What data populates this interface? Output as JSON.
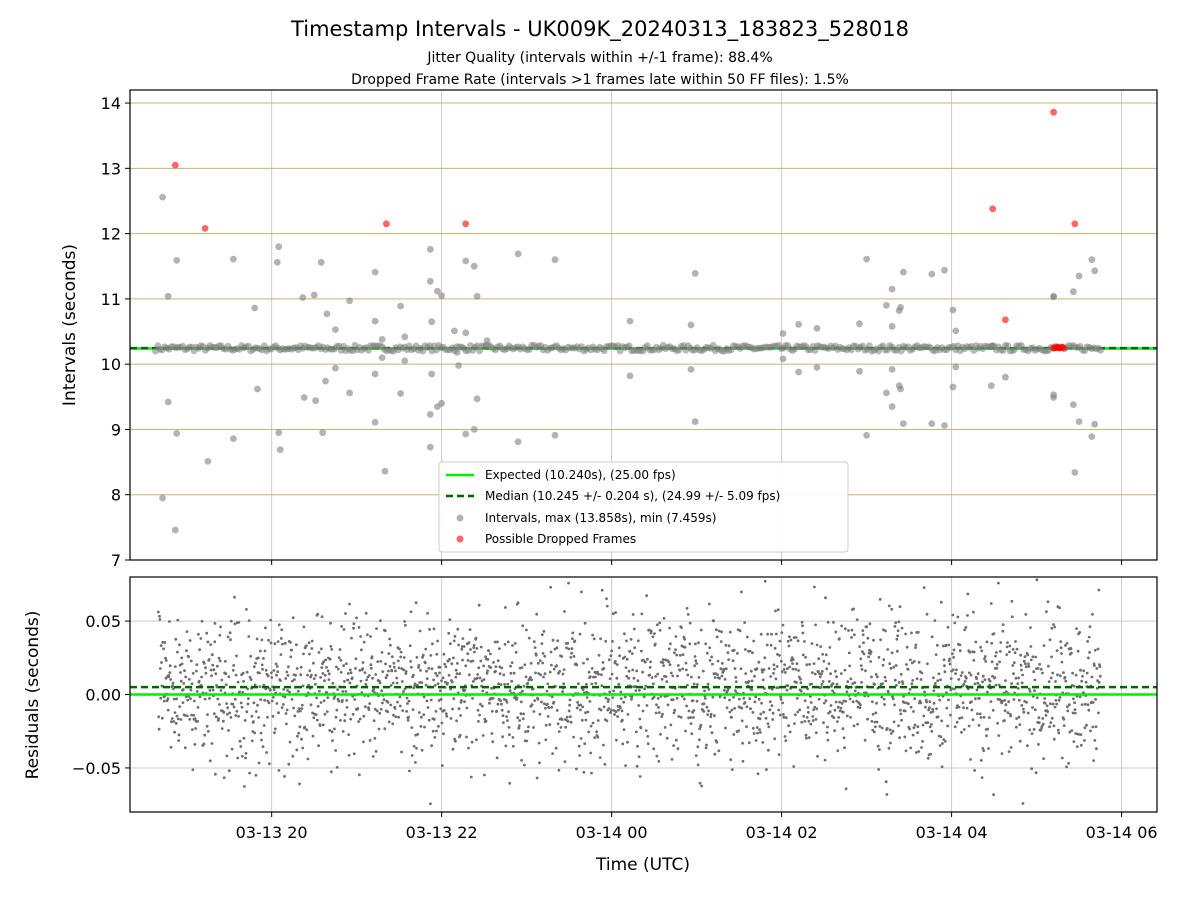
{
  "title": "Timestamp Intervals - UK009K_20240313_183823_528018",
  "subtitle_lines": [
    "Jitter Quality (intervals within +/-1 frame): 88.4%",
    "Dropped Frame Rate (intervals >1 frames late within 50 FF files): 1.5%"
  ],
  "colors": {
    "expected": "#00ee00",
    "median": "#006400",
    "intervals": "#808080",
    "dropped": "#ff0000",
    "hgrid": "#c8b46a",
    "grid": "#cccccc",
    "residuals": "#6e6e6e"
  },
  "chart_data": [
    {
      "type": "scatter",
      "panel": "intervals",
      "ylabel": "Intervals (seconds)",
      "xlim": [
        "2024-03-13 18:20",
        "2024-03-14 06:25"
      ],
      "ylim": [
        7,
        14.2
      ],
      "x_ticks": [
        "03-13 20",
        "03-13 22",
        "03-14 00",
        "03-14 02",
        "03-14 04",
        "03-14 06"
      ],
      "y_ticks": [
        "7",
        "8",
        "9",
        "10",
        "11",
        "12",
        "13",
        "14"
      ],
      "grid": true,
      "legend_position": "lower center",
      "expected_line": {
        "name": "Expected (10.240s), (25.00 fps)",
        "y": 10.24
      },
      "median_line": {
        "name": "Median (10.245 +/- 0.204 s), (24.99 +/- 5.09 fps)",
        "y": 10.245
      },
      "series": [
        {
          "name": "Intervals, max (13.858s), min (7.459s)",
          "baseline": {
            "from": "2024-03-13 18:38",
            "to": "2024-03-14 05:46",
            "y": 10.245
          },
          "points": [
            [
              "2024-03-13 18:43",
              12.56
            ],
            [
              "2024-03-13 18:43",
              7.95
            ],
            [
              "2024-03-13 18:47",
              11.04
            ],
            [
              "2024-03-13 18:47",
              9.42
            ],
            [
              "2024-03-13 18:52",
              7.46
            ],
            [
              "2024-03-13 18:53",
              11.59
            ],
            [
              "2024-03-13 18:53",
              8.94
            ],
            [
              "2024-03-13 19:15",
              8.51
            ],
            [
              "2024-03-13 19:33",
              11.61
            ],
            [
              "2024-03-13 19:33",
              8.86
            ],
            [
              "2024-03-13 19:48",
              10.86
            ],
            [
              "2024-03-13 19:50",
              9.62
            ],
            [
              "2024-03-13 20:05",
              11.8
            ],
            [
              "2024-03-13 20:04",
              11.56
            ],
            [
              "2024-03-13 20:05",
              8.95
            ],
            [
              "2024-03-13 20:06",
              8.69
            ],
            [
              "2024-03-13 20:22",
              11.02
            ],
            [
              "2024-03-13 20:23",
              9.49
            ],
            [
              "2024-03-13 20:30",
              11.06
            ],
            [
              "2024-03-13 20:31",
              9.44
            ],
            [
              "2024-03-13 20:35",
              11.56
            ],
            [
              "2024-03-13 20:36",
              8.95
            ],
            [
              "2024-03-13 20:39",
              10.77
            ],
            [
              "2024-03-13 20:38",
              9.74
            ],
            [
              "2024-03-13 20:45",
              10.53
            ],
            [
              "2024-03-13 20:45",
              9.94
            ],
            [
              "2024-03-13 20:55",
              10.97
            ],
            [
              "2024-03-13 20:55",
              9.56
            ],
            [
              "2024-03-13 21:13",
              11.41
            ],
            [
              "2024-03-13 21:13",
              10.66
            ],
            [
              "2024-03-13 21:13",
              9.85
            ],
            [
              "2024-03-13 21:13",
              9.11
            ],
            [
              "2024-03-13 21:18",
              10.38
            ],
            [
              "2024-03-13 21:18",
              10.1
            ],
            [
              "2024-03-13 21:20",
              8.36
            ],
            [
              "2024-03-13 21:31",
              10.89
            ],
            [
              "2024-03-13 21:31",
              9.55
            ],
            [
              "2024-03-13 21:34",
              10.42
            ],
            [
              "2024-03-13 21:34",
              10.05
            ],
            [
              "2024-03-13 21:52",
              11.76
            ],
            [
              "2024-03-13 21:52",
              11.27
            ],
            [
              "2024-03-13 21:53",
              10.65
            ],
            [
              "2024-03-13 21:53",
              9.85
            ],
            [
              "2024-03-13 21:52",
              9.23
            ],
            [
              "2024-03-13 21:52",
              8.73
            ],
            [
              "2024-03-13 21:57",
              11.12
            ],
            [
              "2024-03-13 21:57",
              9.35
            ],
            [
              "2024-03-13 22:00",
              11.05
            ],
            [
              "2024-03-13 22:00",
              9.4
            ],
            [
              "2024-03-13 22:09",
              10.51
            ],
            [
              "2024-03-13 22:11",
              10.18
            ],
            [
              "2024-03-13 22:12",
              9.98
            ],
            [
              "2024-03-13 22:17",
              11.58
            ],
            [
              "2024-03-13 22:17",
              10.48
            ],
            [
              "2024-03-13 22:17",
              8.93
            ],
            [
              "2024-03-13 22:23",
              11.5
            ],
            [
              "2024-03-13 22:23",
              9.0
            ],
            [
              "2024-03-13 22:25",
              11.04
            ],
            [
              "2024-03-13 22:25",
              9.47
            ],
            [
              "2024-03-13 22:32",
              10.36
            ],
            [
              "2024-03-13 22:54",
              11.69
            ],
            [
              "2024-03-13 22:54",
              8.81
            ],
            [
              "2024-03-13 23:20",
              11.6
            ],
            [
              "2024-03-13 23:20",
              8.91
            ],
            [
              "2024-03-14 00:13",
              10.66
            ],
            [
              "2024-03-14 00:13",
              9.82
            ],
            [
              "2024-03-14 00:56",
              10.6
            ],
            [
              "2024-03-14 00:56",
              9.92
            ],
            [
              "2024-03-14 00:59",
              11.39
            ],
            [
              "2024-03-14 00:59",
              9.12
            ],
            [
              "2024-03-14 02:01",
              10.47
            ],
            [
              "2024-03-14 02:01",
              10.08
            ],
            [
              "2024-03-14 02:12",
              10.61
            ],
            [
              "2024-03-14 02:12",
              9.88
            ],
            [
              "2024-03-14 02:25",
              10.55
            ],
            [
              "2024-03-14 02:25",
              9.95
            ],
            [
              "2024-03-14 02:55",
              10.62
            ],
            [
              "2024-03-14 02:55",
              9.89
            ],
            [
              "2024-03-14 03:00",
              11.61
            ],
            [
              "2024-03-14 03:00",
              8.91
            ],
            [
              "2024-03-14 03:14",
              10.9
            ],
            [
              "2024-03-14 03:14",
              9.56
            ],
            [
              "2024-03-14 03:18",
              11.15
            ],
            [
              "2024-03-14 03:18",
              10.58
            ],
            [
              "2024-03-14 03:18",
              9.92
            ],
            [
              "2024-03-14 03:18",
              9.35
            ],
            [
              "2024-03-14 03:23",
              10.82
            ],
            [
              "2024-03-14 03:23",
              9.67
            ],
            [
              "2024-03-14 03:24",
              10.87
            ],
            [
              "2024-03-14 03:24",
              9.62
            ],
            [
              "2024-03-14 03:26",
              11.41
            ],
            [
              "2024-03-14 03:26",
              9.09
            ],
            [
              "2024-03-14 03:46",
              11.38
            ],
            [
              "2024-03-14 03:46",
              9.09
            ],
            [
              "2024-03-14 03:55",
              11.44
            ],
            [
              "2024-03-14 03:55",
              9.06
            ],
            [
              "2024-03-14 04:01",
              10.83
            ],
            [
              "2024-03-14 04:01",
              9.65
            ],
            [
              "2024-03-14 04:03",
              10.51
            ],
            [
              "2024-03-14 04:03",
              9.96
            ],
            [
              "2024-03-14 04:29",
              10.28
            ],
            [
              "2024-03-14 04:28",
              9.67
            ],
            [
              "2024-03-14 04:38",
              9.8
            ],
            [
              "2024-03-14 05:12",
              11.04
            ],
            [
              "2024-03-14 05:12",
              11.03
            ],
            [
              "2024-03-14 05:12",
              9.49
            ],
            [
              "2024-03-14 05:12",
              9.53
            ],
            [
              "2024-03-14 05:26",
              11.11
            ],
            [
              "2024-03-14 05:26",
              9.38
            ],
            [
              "2024-03-14 05:30",
              11.35
            ],
            [
              "2024-03-14 05:30",
              9.12
            ],
            [
              "2024-03-14 05:39",
              11.6
            ],
            [
              "2024-03-14 05:39",
              8.89
            ],
            [
              "2024-03-14 05:41",
              11.43
            ],
            [
              "2024-03-14 05:41",
              9.08
            ],
            [
              "2024-03-14 05:27",
              8.34
            ]
          ]
        },
        {
          "name": "Possible Dropped Frames",
          "points": [
            [
              "2024-03-13 18:52",
              13.05
            ],
            [
              "2024-03-13 19:13",
              12.08
            ],
            [
              "2024-03-13 21:21",
              12.15
            ],
            [
              "2024-03-13 22:17",
              12.15
            ],
            [
              "2024-03-14 04:29",
              12.38
            ],
            [
              "2024-03-14 04:38",
              10.68
            ],
            [
              "2024-03-14 05:12",
              13.86
            ],
            [
              "2024-03-14 05:27",
              12.15
            ],
            [
              "2024-03-14 05:12",
              10.25
            ],
            [
              "2024-03-14 05:13",
              10.25
            ],
            [
              "2024-03-14 05:14",
              10.25
            ],
            [
              "2024-03-14 05:15",
              10.26
            ],
            [
              "2024-03-14 05:16",
              10.25
            ],
            [
              "2024-03-14 05:17",
              10.25
            ],
            [
              "2024-03-14 05:18",
              10.26
            ],
            [
              "2024-03-14 05:19",
              10.25
            ]
          ]
        }
      ]
    },
    {
      "type": "scatter",
      "panel": "residuals",
      "xlabel": "Time (UTC)",
      "ylabel": "Residuals (seconds)",
      "xlim": [
        "2024-03-13 18:20",
        "2024-03-14 06:25"
      ],
      "ylim": [
        -0.08,
        0.08
      ],
      "x_ticks": [
        "03-13 20",
        "03-13 22",
        "03-14 00",
        "03-14 02",
        "03-14 04",
        "03-14 06"
      ],
      "y_ticks": [
        "−0.05",
        "0.00",
        "0.05"
      ],
      "grid": true,
      "expected_line": {
        "y": 0.0
      },
      "median_line": {
        "y": 0.005
      },
      "residual_spread": {
        "from": "2024-03-13 18:40",
        "to": "2024-03-14 05:45",
        "center": 0.005,
        "std": 0.025
      }
    }
  ]
}
